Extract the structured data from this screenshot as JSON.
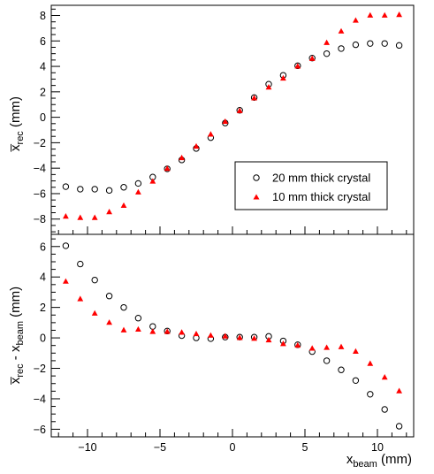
{
  "chart_data": [
    {
      "type": "scatter",
      "panel": "top",
      "ylabel_main": "x̅",
      "ylabel_sub": "rec",
      "ylabel_unit": " (mm)",
      "xlim": [
        -12.5,
        12.5
      ],
      "ylim": [
        -9.2,
        8.8
      ],
      "yticks": [
        -8,
        -6,
        -4,
        -2,
        0,
        2,
        4,
        6,
        8
      ],
      "grid": false,
      "legend_position": "center-right",
      "series": [
        {
          "name": "20 mm thick crystal",
          "marker": "open-circle",
          "color": "#000000",
          "x": [
            -11.5,
            -10.5,
            -9.5,
            -8.5,
            -7.5,
            -6.5,
            -5.5,
            -4.5,
            -3.5,
            -2.5,
            -1.5,
            -0.5,
            0.5,
            1.5,
            2.5,
            3.5,
            4.5,
            5.5,
            6.5,
            7.5,
            8.5,
            9.5,
            10.5,
            11.5
          ],
          "y": [
            -5.45,
            -5.65,
            -5.65,
            -5.75,
            -5.5,
            -5.2,
            -4.7,
            -4.05,
            -3.35,
            -2.45,
            -1.6,
            -0.45,
            0.55,
            1.55,
            2.6,
            3.3,
            4.05,
            4.65,
            5.0,
            5.4,
            5.7,
            5.8,
            5.8,
            5.65
          ]
        },
        {
          "name": "10 mm thick crystal",
          "marker": "filled-triangle",
          "color": "#ff0000",
          "x": [
            -11.5,
            -10.5,
            -9.5,
            -8.5,
            -7.5,
            -6.5,
            -5.5,
            -4.5,
            -3.5,
            -2.5,
            -1.5,
            -0.5,
            0.5,
            1.5,
            2.5,
            3.5,
            4.5,
            5.5,
            6.5,
            7.5,
            8.5,
            9.5,
            10.5,
            11.5
          ],
          "y": [
            -7.8,
            -7.9,
            -7.9,
            -7.45,
            -6.95,
            -5.9,
            -5.05,
            -4.05,
            -3.2,
            -2.3,
            -1.35,
            -0.35,
            0.5,
            1.5,
            2.35,
            3.05,
            4.0,
            4.6,
            5.85,
            6.75,
            7.6,
            8.0,
            8.0,
            8.05
          ]
        }
      ]
    },
    {
      "type": "scatter",
      "panel": "bottom",
      "ylabel_main": "x̅",
      "ylabel_sub": "rec",
      "ylabel_mid": " - x",
      "ylabel_sub2": "beam",
      "ylabel_unit": " (mm)",
      "xlabel_main": "x",
      "xlabel_sub": "beam",
      "xlabel_unit": " (mm)",
      "xlim": [
        -12.5,
        12.5
      ],
      "ylim": [
        -6.5,
        6.8
      ],
      "yticks": [
        -6,
        -4,
        -2,
        0,
        2,
        4,
        6
      ],
      "xticks": [
        -10,
        -5,
        0,
        5,
        10
      ],
      "grid": false,
      "series": [
        {
          "name": "20 mm thick crystal",
          "marker": "open-circle",
          "color": "#000000",
          "x": [
            -11.5,
            -10.5,
            -9.5,
            -8.5,
            -7.5,
            -6.5,
            -5.5,
            -4.5,
            -3.5,
            -2.5,
            -1.5,
            -0.5,
            0.5,
            1.5,
            2.5,
            3.5,
            4.5,
            5.5,
            6.5,
            7.5,
            8.5,
            9.5,
            10.5,
            11.5
          ],
          "y": [
            6.05,
            4.85,
            3.8,
            2.75,
            2.0,
            1.3,
            0.75,
            0.45,
            0.15,
            0.0,
            -0.05,
            0.05,
            0.05,
            0.05,
            0.1,
            -0.2,
            -0.45,
            -0.9,
            -1.5,
            -2.1,
            -2.8,
            -3.7,
            -4.7,
            -5.8
          ]
        },
        {
          "name": "10 mm thick crystal",
          "marker": "filled-triangle",
          "color": "#ff0000",
          "x": [
            -11.5,
            -10.5,
            -9.5,
            -8.5,
            -7.5,
            -6.5,
            -5.5,
            -4.5,
            -3.5,
            -2.5,
            -1.5,
            -0.5,
            0.5,
            1.5,
            2.5,
            3.5,
            4.5,
            5.5,
            6.5,
            7.5,
            8.5,
            9.5,
            10.5,
            11.5
          ],
          "y": [
            3.7,
            2.55,
            1.6,
            1.0,
            0.5,
            0.55,
            0.4,
            0.4,
            0.35,
            0.25,
            0.15,
            0.1,
            0.0,
            -0.05,
            -0.15,
            -0.4,
            -0.5,
            -0.7,
            -0.65,
            -0.6,
            -0.9,
            -1.7,
            -2.6,
            -3.5
          ]
        }
      ]
    }
  ]
}
